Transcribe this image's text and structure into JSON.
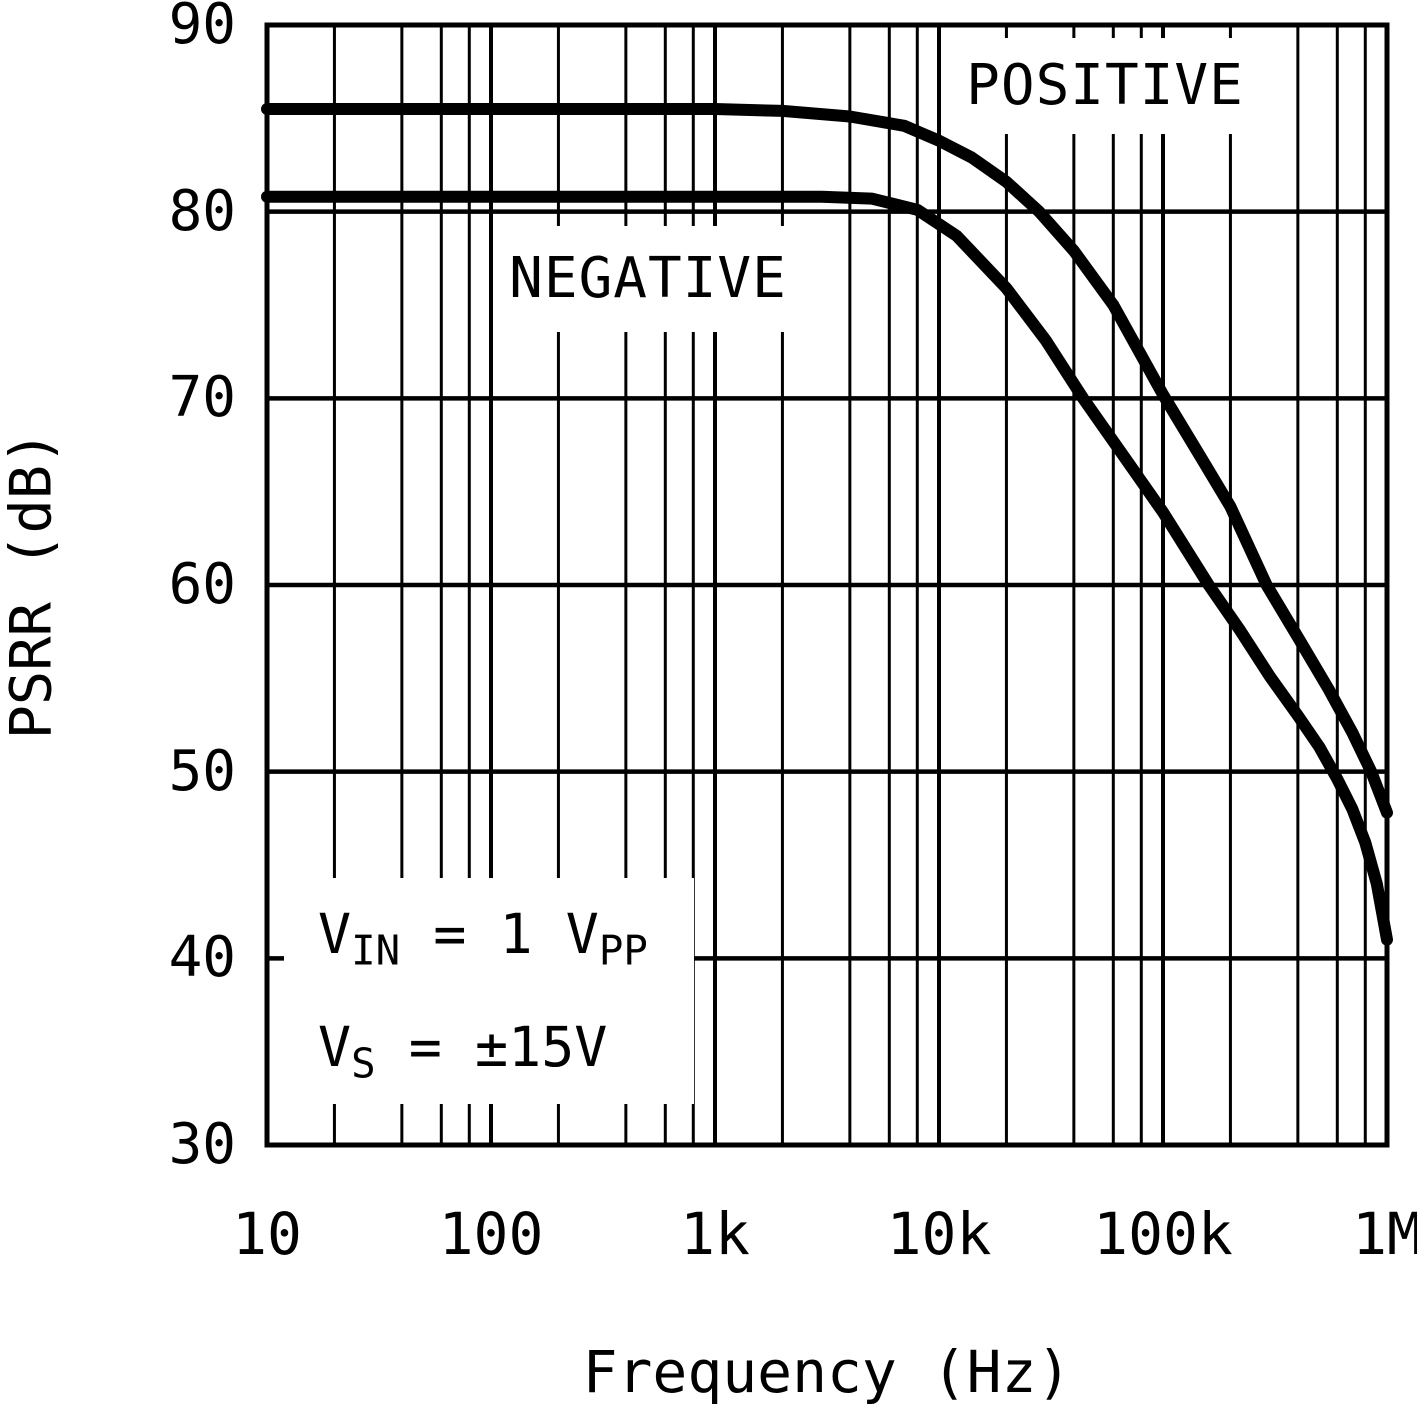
{
  "chart_data": {
    "type": "line",
    "title": "",
    "xlabel": "Frequency (Hz)",
    "ylabel": "PSRR (dB)",
    "x_scale": "log",
    "xlim": [
      10,
      1000000
    ],
    "ylim": [
      30,
      90
    ],
    "grid": "on",
    "y_ticks": [
      {
        "value": 90,
        "label": "90"
      },
      {
        "value": 80,
        "label": "80"
      },
      {
        "value": 70,
        "label": "70"
      },
      {
        "value": 60,
        "label": "60"
      },
      {
        "value": 50,
        "label": "50"
      },
      {
        "value": 40,
        "label": "40"
      },
      {
        "value": 30,
        "label": "30"
      }
    ],
    "x_ticks": [
      {
        "value": 10,
        "label": "10"
      },
      {
        "value": 100,
        "label": "100"
      },
      {
        "value": 1000,
        "label": "1k"
      },
      {
        "value": 10000,
        "label": "10k"
      },
      {
        "value": 100000,
        "label": "100k"
      },
      {
        "value": 1000000,
        "label": "1M"
      }
    ],
    "minor_x_multiples": [
      2,
      4,
      6,
      8
    ],
    "line_color": "#000000",
    "series": [
      {
        "name": "POSITIVE",
        "points": [
          [
            10,
            85.5
          ],
          [
            100,
            85.5
          ],
          [
            1000,
            85.5
          ],
          [
            2000,
            85.4
          ],
          [
            4000,
            85.1
          ],
          [
            7000,
            84.6
          ],
          [
            10000,
            83.8
          ],
          [
            14000,
            82.9
          ],
          [
            20000,
            81.6
          ],
          [
            28000,
            80.0
          ],
          [
            40000,
            77.9
          ],
          [
            60000,
            75.0
          ],
          [
            100000,
            70.2
          ],
          [
            150000,
            66.7
          ],
          [
            200000,
            64.2
          ],
          [
            290000,
            60.0
          ],
          [
            400000,
            57.2
          ],
          [
            550000,
            54.4
          ],
          [
            700000,
            52.1
          ],
          [
            850000,
            50.0
          ],
          [
            1000000,
            47.8
          ]
        ]
      },
      {
        "name": "NEGATIVE",
        "points": [
          [
            10,
            80.8
          ],
          [
            100,
            80.8
          ],
          [
            1000,
            80.8
          ],
          [
            3000,
            80.8
          ],
          [
            5000,
            80.7
          ],
          [
            8000,
            80.1
          ],
          [
            12000,
            78.7
          ],
          [
            20000,
            75.9
          ],
          [
            30000,
            73.1
          ],
          [
            44000,
            70.0
          ],
          [
            60000,
            67.7
          ],
          [
            100000,
            63.9
          ],
          [
            160000,
            60.0
          ],
          [
            220000,
            57.6
          ],
          [
            300000,
            55.1
          ],
          [
            400000,
            53.0
          ],
          [
            500000,
            51.3
          ],
          [
            600000,
            49.6
          ],
          [
            700000,
            48.0
          ],
          [
            800000,
            46.2
          ],
          [
            900000,
            44.0
          ],
          [
            1000000,
            41.0
          ]
        ]
      }
    ],
    "annotations": [
      "VIN = 1 VPP",
      "VS = ±15V"
    ]
  },
  "annotation": {
    "line1": {
      "base": "V",
      "sub": "IN",
      "mid": " = 1 ",
      "base2": "V",
      "sub2": "PP"
    },
    "line2": {
      "base": "V",
      "sub": "S",
      "mid": " = ±15V"
    }
  },
  "colors": {
    "foreground": "#000000",
    "background": "#ffffff"
  }
}
